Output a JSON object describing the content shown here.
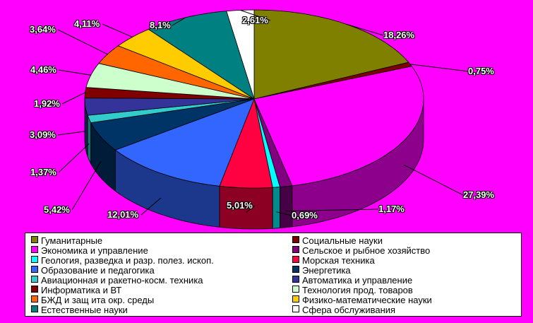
{
  "chart_data": {
    "type": "pie",
    "title": "",
    "slices": [
      {
        "name": "Гуманитарные",
        "value": 18.26,
        "label": "18,26%",
        "color": "#808000"
      },
      {
        "name": "Социальные науки",
        "value": 0.75,
        "label": "0,75%",
        "color": "#800000"
      },
      {
        "name": "Экономика и управление",
        "value": 27.39,
        "label": "27,39%",
        "color": "#ff00ff"
      },
      {
        "name": "Сельское и рыбное хозяйство",
        "value": 1.17,
        "label": "1,17%",
        "color": "#800080"
      },
      {
        "name": "Геология, разведка и разр. полез. ископ.",
        "value": 0.69,
        "label": "0,69%",
        "color": "#00ffff"
      },
      {
        "name": "Морская техника",
        "value": 5.01,
        "label": "5,01%",
        "color": "#ff0040"
      },
      {
        "name": "Образование и педагогика",
        "value": 12.01,
        "label": "12,01%",
        "color": "#3366ff"
      },
      {
        "name": "Энергетика",
        "value": 5.42,
        "label": "5,42%",
        "color": "#003366"
      },
      {
        "name": "Авиационная и ракетно-косм. техника",
        "value": 1.37,
        "label": "1,37%",
        "color": "#33cccc"
      },
      {
        "name": "Автоматика и управление",
        "value": 3.09,
        "label": "3,09%",
        "color": "#333399"
      },
      {
        "name": "Информатика и ВТ",
        "value": 1.92,
        "label": "1,92%",
        "color": "#800000"
      },
      {
        "name": "Технология прод. товаров",
        "value": 4.46,
        "label": "4,46%",
        "color": "#ccffcc"
      },
      {
        "name": "БЖД и защ ита окр. среды",
        "value": 3.64,
        "label": "3,64%",
        "color": "#ff6600"
      },
      {
        "name": "Физико-математические науки",
        "value": 4.11,
        "label": "4,11%",
        "color": "#ffcc00"
      },
      {
        "name": "Естественные науки",
        "value": 8.1,
        "label": "8,1%",
        "color": "#008080"
      },
      {
        "name": "Сфера обслуживания",
        "value": 2.61,
        "label": "2,61%",
        "color": "#ffffff"
      }
    ],
    "legend_position": "bottom",
    "background": "#ff00ff"
  }
}
